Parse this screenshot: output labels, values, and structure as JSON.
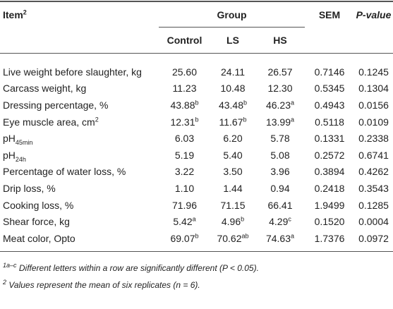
{
  "header": {
    "item": {
      "text": "Item",
      "sup": "2"
    },
    "group": "Group",
    "sem": "SEM",
    "p_value": "P-value",
    "subgroups": [
      "Control",
      "LS",
      "HS"
    ]
  },
  "table": {
    "rows": [
      [
        "Live weight before slaughter, kg",
        "25.60",
        "24.11",
        "26.57",
        "0.7146",
        "0.1245"
      ],
      [
        "Carcass weight, kg",
        "11.23",
        "10.48",
        "12.30",
        "0.5345",
        "0.1304"
      ],
      [
        "Dressing percentage, %",
        {
          "text": "43.88",
          "sup": "b"
        },
        {
          "text": "43.48",
          "sup": "b"
        },
        {
          "text": "46.23",
          "sup": "a"
        },
        "0.4943",
        "0.0156"
      ],
      [
        {
          "text": "Eye muscle area, cm",
          "sup": "2"
        },
        {
          "text": "12.31",
          "sup": "b"
        },
        {
          "text": "11.67",
          "sup": "b"
        },
        {
          "text": "13.99",
          "sup": "a"
        },
        "0.5118",
        "0.0109"
      ],
      [
        {
          "text": "pH",
          "sub": "45min"
        },
        "6.03",
        "6.20",
        "5.78",
        "0.1331",
        "0.2338"
      ],
      [
        {
          "text": "pH",
          "sub": "24h"
        },
        "5.19",
        "5.40",
        "5.08",
        "0.2572",
        "0.6741"
      ],
      [
        "Percentage of water loss, %",
        "3.22",
        "3.50",
        "3.96",
        "0.3894",
        "0.4262"
      ],
      [
        "Drip loss, %",
        "1.10",
        "1.44",
        "0.94",
        "0.2418",
        "0.3543"
      ],
      [
        "Cooking loss, %",
        "71.96",
        "71.15",
        "66.41",
        "1.9499",
        "0.1285"
      ],
      [
        "Shear force, kg",
        {
          "text": "5.42",
          "sup": "a"
        },
        {
          "text": "4.96",
          "sup": "b"
        },
        {
          "text": "4.29",
          "sup": "c"
        },
        "0.1520",
        "0.0004"
      ],
      [
        "Meat color, Opto",
        {
          "text": "69.07",
          "sup": "b"
        },
        {
          "text": "70.62",
          "sup": "ab"
        },
        {
          "text": "74.63",
          "sup": "a"
        },
        "1.7376",
        "0.0972"
      ]
    ]
  },
  "footnotes": [
    {
      "sup": "1a–c",
      "text": "Different letters within a row are significantly different (P < 0.05)."
    },
    {
      "sup": "2",
      "text": "Values represent the mean of six replicates (n = 6)."
    }
  ]
}
